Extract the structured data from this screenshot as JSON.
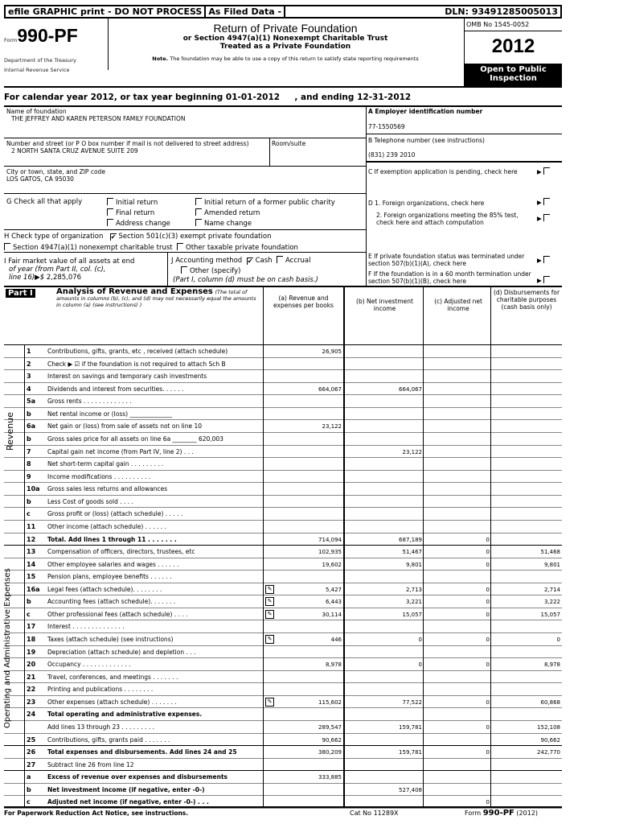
{
  "topbar": {
    "efile": "efile GRAPHIC print - DO NOT PROCESS",
    "filed": "As Filed Data -",
    "dln": "DLN: 93491285005013"
  },
  "header": {
    "form_prefix": "Form",
    "form_no": "990-PF",
    "dept1": "Department of the Treasury",
    "dept2": "Internal Revenue Service",
    "title": "Return of Private Foundation",
    "sub1": "or Section 4947(a)(1) Nonexempt Charitable Trust",
    "sub2": "Treated as a Private Foundation",
    "note_b": "Note.",
    "note": " The foundation may be able to use a copy of this return to satisfy state reporting requirements",
    "omb": "OMB No 1545-0052",
    "year": "2012",
    "open": "Open to Public Inspection"
  },
  "calendar": "For calendar year 2012, or tax year beginning 01-01-2012     , and ending 12-31-2012",
  "org": {
    "name_label": "Name of foundation",
    "name": "THE JEFFREY AND KAREN PETERSON FAMILY FOUNDATION",
    "street_label": "Number and street (or P O box number if mail is not delivered to street address)",
    "street": "2 NORTH SANTA CRUZ AVENUE SUITE 209",
    "room_label": "Room/suite",
    "city_label": "City or town, state, and ZIP code",
    "city": "LOS GATOS, CA  95030",
    "a_label": "A Employer identification number",
    "ein": "77-1550569",
    "b_label": "B Telephone number (see instructions)",
    "phone": "(831) 239 2010",
    "c_label": "C If exemption application is pending, check here",
    "d1": "D 1. Foreign organizations, check here",
    "d2": "2. Foreign organizations meeting the 85% test, check here and attach computation",
    "e": "E  If private foundation status was terminated under section 507(b)(1)(A), check here",
    "f": "F  If the foundation is in a 60 month termination under section 507(b)(1)(B), check here"
  },
  "g": {
    "label": "G  Check all that apply",
    "opts": [
      "Initial return",
      "Initial return of a former public charity",
      "Final return",
      "Amended return",
      "Address change",
      "Name change"
    ]
  },
  "h": {
    "label": "H Check type of organization",
    "o1": "Section 501(c)(3) exempt private foundation",
    "o2": "Section 4947(a)(1) nonexempt charitable trust",
    "o3": "Other taxable private foundation",
    "checked": "o1"
  },
  "i": {
    "l1": "I Fair market value of all assets at end",
    "l2": "of year (from Part II, col. (c),",
    "l3": "line 16)▶$",
    "value": "2,285,076"
  },
  "j": {
    "label": "J Accounting method",
    "cash": "Cash",
    "accrual": "Accrual",
    "other": "Other (specify)",
    "note": "(Part I, column (d) must be on cash basis.)",
    "checked": "cash"
  },
  "part1": {
    "tag": "Part I",
    "title": "Analysis of Revenue and Expenses",
    "desc": "(The total of amounts in columns (b), (c), and (d) may not necessarily equal the amounts in column (a) (see instructions) )",
    "cols": [
      "(a) Revenue and expenses per books",
      "(b) Net investment income",
      "(c) Adjusted net income",
      "(d) Disbursements for charitable purposes (cash basis only)"
    ],
    "side_revenue": "Revenue",
    "side_expenses": "Operating and Administrative Expenses",
    "rows": [
      {
        "no": "1",
        "label": "Contributions, gifts, grants, etc , received (attach schedule)",
        "v": [
          "26,905",
          "",
          "",
          ""
        ]
      },
      {
        "no": "2",
        "label": "Check ▶ ☑ if the foundation is not required to attach Sch B",
        "v": [
          "",
          "",
          "",
          ""
        ]
      },
      {
        "no": "3",
        "label": "Interest on savings and temporary cash investments",
        "v": [
          "",
          "",
          "",
          ""
        ]
      },
      {
        "no": "4",
        "label": "Dividends and interest from securities. . . . . .",
        "v": [
          "664,067",
          "664,067",
          "",
          ""
        ]
      },
      {
        "no": "5a",
        "label": "Gross rents . . . . . . . . . . . . .",
        "v": [
          "",
          "",
          "",
          ""
        ]
      },
      {
        "no": "b",
        "label": "Net rental income or (loss) ______________",
        "v": [
          "",
          "",
          "",
          ""
        ]
      },
      {
        "no": "6a",
        "label": "Net gain or (loss) from sale of assets not on line 10",
        "v": [
          "23,122",
          "",
          "",
          ""
        ]
      },
      {
        "no": "b",
        "label": "Gross sales price for all assets on line 6a ________ 620,003",
        "v": [
          "",
          "",
          "",
          ""
        ]
      },
      {
        "no": "7",
        "label": "Capital gain net income (from Part IV, line 2) . . .",
        "v": [
          "",
          "23,122",
          "",
          ""
        ]
      },
      {
        "no": "8",
        "label": "Net short-term capital gain . . . . . . . . .",
        "v": [
          "",
          "",
          "",
          ""
        ]
      },
      {
        "no": "9",
        "label": "Income modifications . . . . . . . . . .",
        "v": [
          "",
          "",
          "",
          ""
        ]
      },
      {
        "no": "10a",
        "label": "Gross sales less returns and allowances",
        "v": [
          "",
          "",
          "",
          ""
        ]
      },
      {
        "no": "b",
        "label": "Less Cost of goods sold . . . .",
        "v": [
          "",
          "",
          "",
          ""
        ]
      },
      {
        "no": "c",
        "label": "Gross profit or (loss) (attach schedule) . . . . .",
        "v": [
          "",
          "",
          "",
          ""
        ]
      },
      {
        "no": "11",
        "label": "Other income (attach schedule) . . . . . .",
        "v": [
          "",
          "",
          "",
          ""
        ]
      },
      {
        "no": "12",
        "label": "Total. Add lines 1 through 11 . . . . . . .",
        "v": [
          "714,094",
          "687,189",
          "0",
          ""
        ]
      },
      {
        "no": "13",
        "label": "Compensation of officers, directors, trustees, etc",
        "v": [
          "102,935",
          "51,467",
          "0",
          "51,468"
        ]
      },
      {
        "no": "14",
        "label": "Other employee salaries and wages . . . . . .",
        "v": [
          "19,602",
          "9,801",
          "0",
          "9,801"
        ]
      },
      {
        "no": "15",
        "label": "Pension plans, employee benefits . . . . . .",
        "v": [
          "",
          "",
          "",
          ""
        ]
      },
      {
        "no": "16a",
        "label": "Legal fees (attach schedule). . . . . . . .",
        "v": [
          "5,427",
          "2,713",
          "0",
          "2,714"
        ],
        "icon": true
      },
      {
        "no": "b",
        "label": "Accounting fees (attach schedule). . . . . . .",
        "v": [
          "6,443",
          "3,221",
          "0",
          "3,222"
        ],
        "icon": true
      },
      {
        "no": "c",
        "label": "Other professional fees (attach schedule) . . . .",
        "v": [
          "30,114",
          "15,057",
          "0",
          "15,057"
        ],
        "icon": true
      },
      {
        "no": "17",
        "label": "Interest . . . . . . . . . . . . . .",
        "v": [
          "",
          "",
          "",
          ""
        ]
      },
      {
        "no": "18",
        "label": "Taxes (attach schedule) (see instructions)",
        "v": [
          "446",
          "0",
          "0",
          "0"
        ],
        "icon": true
      },
      {
        "no": "19",
        "label": "Depreciation (attach schedule) and depletion . . .",
        "v": [
          "",
          "",
          "",
          ""
        ]
      },
      {
        "no": "20",
        "label": "Occupancy . . . . . . . . . . . . .",
        "v": [
          "8,978",
          "0",
          "0",
          "8,978"
        ]
      },
      {
        "no": "21",
        "label": "Travel, conferences, and meetings . . . . . . .",
        "v": [
          "",
          "",
          "",
          ""
        ]
      },
      {
        "no": "22",
        "label": "Printing and publications . . . . . . . .",
        "v": [
          "",
          "",
          "",
          ""
        ]
      },
      {
        "no": "23",
        "label": "Other expenses (attach schedule) . . . . . . .",
        "v": [
          "115,602",
          "77,522",
          "0",
          "60,868"
        ],
        "icon": true
      },
      {
        "no": "24",
        "label": "Total operating and administrative expenses.",
        "v": [
          "",
          "",
          "",
          ""
        ]
      },
      {
        "no": "",
        "label": "Add lines 13 through 23 . . . . . . . . .",
        "v": [
          "289,547",
          "159,781",
          "0",
          "152,108"
        ]
      },
      {
        "no": "25",
        "label": "Contributions, gifts, grants paid . . . . . . .",
        "v": [
          "90,662",
          "",
          "",
          "90,662"
        ]
      },
      {
        "no": "26",
        "label": "Total expenses and disbursements. Add lines 24 and 25",
        "v": [
          "380,209",
          "159,781",
          "0",
          "242,770"
        ]
      },
      {
        "no": "27",
        "label": "Subtract line 26 from line 12",
        "v": [
          "",
          "",
          "",
          ""
        ]
      },
      {
        "no": "a",
        "label": "Excess of revenue over expenses and disbursements",
        "v": [
          "333,885",
          "",
          "",
          ""
        ]
      },
      {
        "no": "b",
        "label": "Net investment income (if negative, enter -0-)",
        "v": [
          "",
          "527,408",
          "",
          ""
        ]
      },
      {
        "no": "c",
        "label": "Adjusted net income (if negative, enter -0-) . . .",
        "v": [
          "",
          "",
          "0",
          ""
        ]
      }
    ]
  },
  "footer": {
    "left": "For Paperwork Reduction Act Notice, see instructions.",
    "cat": "Cat No 11289X",
    "form_pre": "Form ",
    "form": "990-PF",
    "form_post": " (2012)"
  }
}
